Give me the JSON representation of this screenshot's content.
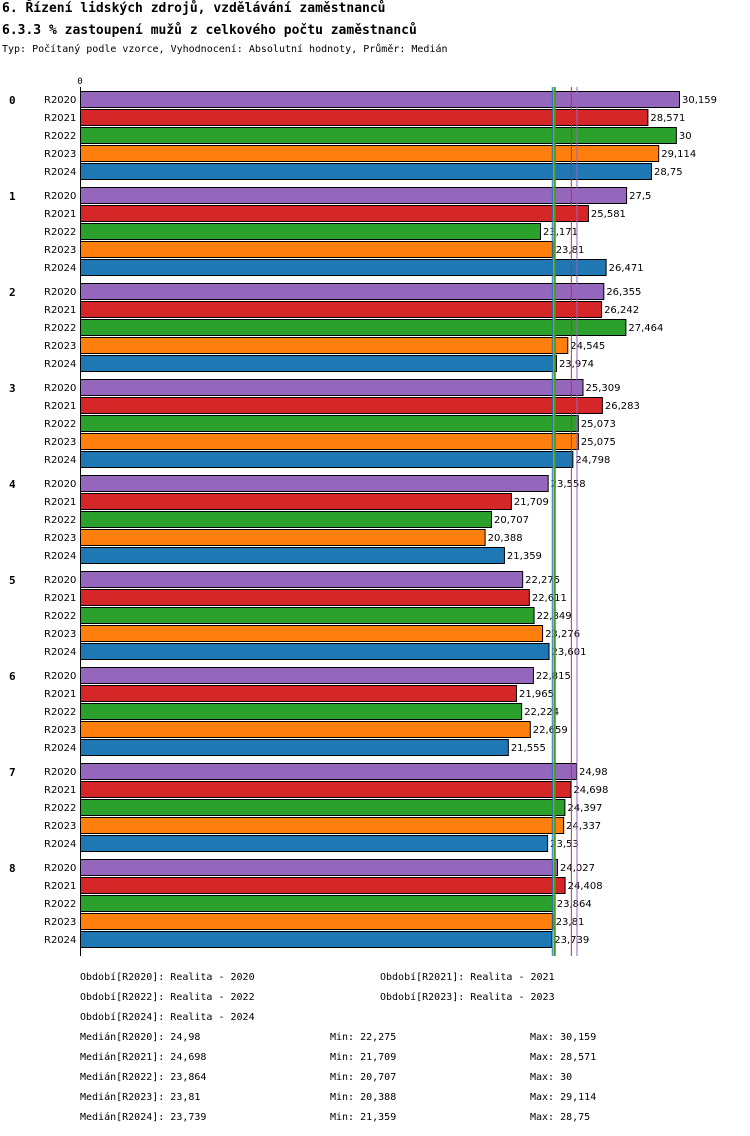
{
  "header": {
    "title": "6. Řízení lidských zdrojů, vzdělávání zaměstnanců",
    "subtitle": "6.3.3 % zastoupení mužů z celkového počtu zaměstnanců",
    "type_line": "Typ: Počítaný podle vzorce, Vyhodnocení: Absolutní hodnoty, Průměr: Medián"
  },
  "chart_data": {
    "type": "bar",
    "orientation": "horizontal",
    "axis_zero_label": "0",
    "xlim": [
      0,
      30.159
    ],
    "groups": [
      "0",
      "1",
      "2",
      "3",
      "4",
      "5",
      "6",
      "7",
      "8"
    ],
    "series": [
      {
        "name": "R2020",
        "color": "#9467bd",
        "values": [
          30.159,
          27.5,
          26.355,
          25.309,
          23.558,
          22.275,
          22.815,
          24.98,
          24.027
        ],
        "labels": [
          "30,159",
          "27,5",
          "26,355",
          "25,309",
          "23,558",
          "22,275",
          "22,815",
          "24,98",
          "24,027"
        ]
      },
      {
        "name": "R2021",
        "color": "#d62728",
        "values": [
          28.571,
          25.581,
          26.242,
          26.283,
          21.709,
          22.611,
          21.965,
          24.698,
          24.408
        ],
        "labels": [
          "28,571",
          "25,581",
          "26,242",
          "26,283",
          "21,709",
          "22,611",
          "21,965",
          "24,698",
          "24,408"
        ]
      },
      {
        "name": "R2022",
        "color": "#2ca02c",
        "values": [
          30,
          23.171,
          27.464,
          25.073,
          20.707,
          22.849,
          22.224,
          24.397,
          23.864
        ],
        "labels": [
          "30",
          "23,171",
          "27,464",
          "25,073",
          "20,707",
          "22,849",
          "22,224",
          "24,397",
          "23,864"
        ]
      },
      {
        "name": "R2023",
        "color": "#ff7f0e",
        "values": [
          29.114,
          23.81,
          24.545,
          25.075,
          20.388,
          23.276,
          22.659,
          24.337,
          23.81
        ],
        "labels": [
          "29,114",
          "23,81",
          "24,545",
          "25,075",
          "20,388",
          "23,276",
          "22,659",
          "24,337",
          "23,81"
        ]
      },
      {
        "name": "R2024",
        "color": "#1f77b4",
        "values": [
          28.75,
          26.471,
          23.974,
          24.798,
          21.359,
          23.601,
          21.555,
          23.53,
          23.739
        ],
        "labels": [
          "28,75",
          "26,471",
          "23,974",
          "24,798",
          "21,359",
          "23,601",
          "21,555",
          "23,53",
          "23,739"
        ]
      }
    ],
    "median_lines": [
      {
        "series": "R2020",
        "value": 24.98,
        "color": "#9467bd"
      },
      {
        "series": "R2021",
        "value": 24.698,
        "color": "#d62728"
      },
      {
        "series": "R2022",
        "value": 23.864,
        "color": "#2ca02c"
      },
      {
        "series": "R2023",
        "value": 23.81,
        "color": "#ff7f0e"
      },
      {
        "series": "R2024",
        "value": 23.739,
        "color": "#1f77b4"
      }
    ]
  },
  "legend": {
    "periods": [
      "Období[R2020]: Realita - 2020",
      "Období[R2021]: Realita - 2021",
      "Období[R2022]: Realita - 2022",
      "Období[R2023]: Realita - 2023",
      "Období[R2024]: Realita - 2024"
    ],
    "stats": [
      {
        "median": "Medián[R2020]: 24,98",
        "min": "Min: 22,275",
        "max": "Max: 30,159"
      },
      {
        "median": "Medián[R2021]: 24,698",
        "min": "Min: 21,709",
        "max": "Max: 28,571"
      },
      {
        "median": "Medián[R2022]: 23,864",
        "min": "Min: 20,707",
        "max": "Max: 30"
      },
      {
        "median": "Medián[R2023]: 23,81",
        "min": "Min: 20,388",
        "max": "Max: 29,114"
      },
      {
        "median": "Medián[R2024]: 23,739",
        "min": "Min: 21,359",
        "max": "Max: 28,75"
      }
    ]
  }
}
